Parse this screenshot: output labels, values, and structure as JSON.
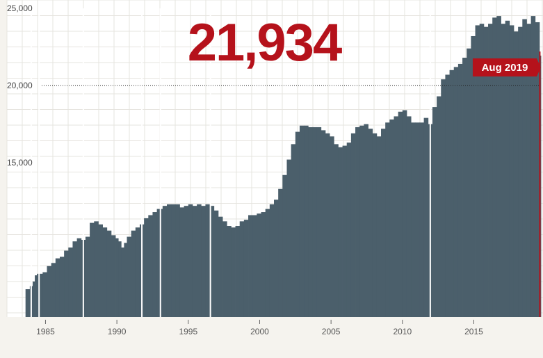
{
  "headline_value": "21,934",
  "colors": {
    "bar": "#4b5f6b",
    "accent": "#b5121b",
    "grid": "#e6e4df",
    "plot_bg": "#ffffff",
    "page_bg": "#f5f3ee"
  },
  "chart_data": {
    "type": "area",
    "title": "",
    "xlabel": "",
    "ylabel": "",
    "x_ticks": [
      "1985",
      "1990",
      "1995",
      "2000",
      "2005",
      "2010",
      "2015"
    ],
    "y_ticks": [
      "25,000",
      "20,000",
      "15,000"
    ],
    "ylim": [
      5000,
      25000
    ],
    "xlim": [
      1982.3,
      2019.7
    ],
    "grid": true,
    "reference_line": {
      "y": 20000,
      "style": "dotted"
    },
    "callout": {
      "label": "Aug 2019",
      "x": 2019.6,
      "y": 21934
    },
    "series": [
      {
        "x": [
          1983.6,
          1983.9,
          1984.1,
          1984.25,
          1984.4,
          1984.8,
          1985.1,
          1985.4,
          1985.7,
          1986.0,
          1986.3,
          1986.6,
          1986.9,
          1987.2,
          1987.5,
          1987.8,
          1988.1,
          1988.4,
          1988.7,
          1989.0,
          1989.3,
          1989.6,
          1989.9,
          1990.1,
          1990.3,
          1990.5,
          1990.7,
          1991.0,
          1991.3,
          1991.6,
          1991.9,
          1992.2,
          1992.5,
          1992.8,
          1993.2,
          1993.5,
          1993.8,
          1994.1,
          1994.4,
          1994.7,
          1995.0,
          1995.3,
          1995.6,
          1995.9,
          1996.2,
          1996.5,
          1996.8,
          1997.1,
          1997.4,
          1997.7,
          1998.0,
          1998.3,
          1998.6,
          1998.9,
          1999.2,
          1999.5,
          1999.8,
          2000.1,
          2000.4,
          2000.7,
          2001.0,
          2001.3,
          2001.6,
          2001.9,
          2002.2,
          2002.5,
          2002.8,
          2003.1,
          2003.4,
          2003.7,
          2004.0,
          2004.3,
          2004.6,
          2004.9,
          2005.2,
          2005.5,
          2005.8,
          2006.1,
          2006.4,
          2006.7,
          2007.0,
          2007.3,
          2007.6,
          2007.9,
          2008.2,
          2008.5,
          2008.8,
          2009.1,
          2009.4,
          2009.7,
          2010.0,
          2010.3,
          2010.6,
          2010.9,
          2011.2,
          2011.5,
          2011.8,
          2012.1,
          2012.4,
          2012.7,
          2013.0,
          2013.3,
          2013.6,
          2013.9,
          2014.2,
          2014.5,
          2014.8,
          2015.1,
          2015.4,
          2015.7,
          2016.0,
          2016.3,
          2016.6,
          2016.9,
          2017.2,
          2017.5,
          2017.8,
          2018.1,
          2018.4,
          2018.7,
          2019.0,
          2019.3,
          2019.6
        ],
        "values": [
          6800,
          7000,
          7300,
          7700,
          7800,
          7900,
          8300,
          8500,
          8800,
          8900,
          9300,
          9500,
          9900,
          10100,
          10000,
          10200,
          11100,
          11200,
          11000,
          10800,
          10600,
          10300,
          10100,
          9900,
          9500,
          9800,
          10200,
          10600,
          10800,
          11000,
          11400,
          11600,
          11800,
          12000,
          12200,
          12300,
          12300,
          12300,
          12100,
          12200,
          12300,
          12200,
          12300,
          12200,
          12300,
          12200,
          11900,
          11500,
          11200,
          10900,
          10800,
          10900,
          11200,
          11300,
          11600,
          11600,
          11700,
          11800,
          12000,
          12300,
          12600,
          13300,
          14200,
          15200,
          16200,
          17000,
          17400,
          17400,
          17300,
          17300,
          17300,
          17100,
          16900,
          16700,
          16200,
          16000,
          16100,
          16300,
          16900,
          17300,
          17400,
          17500,
          17200,
          16900,
          16700,
          17200,
          17600,
          17800,
          18000,
          18300,
          18400,
          18000,
          17600,
          17600,
          17600,
          17900,
          17500,
          18600,
          19300,
          20400,
          20700,
          21000,
          21200,
          21400,
          21800,
          22400,
          23200,
          23900,
          24000,
          23800,
          24000,
          24400,
          24500,
          24000,
          24200,
          23900,
          23500,
          23800,
          24300,
          24000,
          24500,
          24100,
          21934
        ]
      }
    ]
  }
}
